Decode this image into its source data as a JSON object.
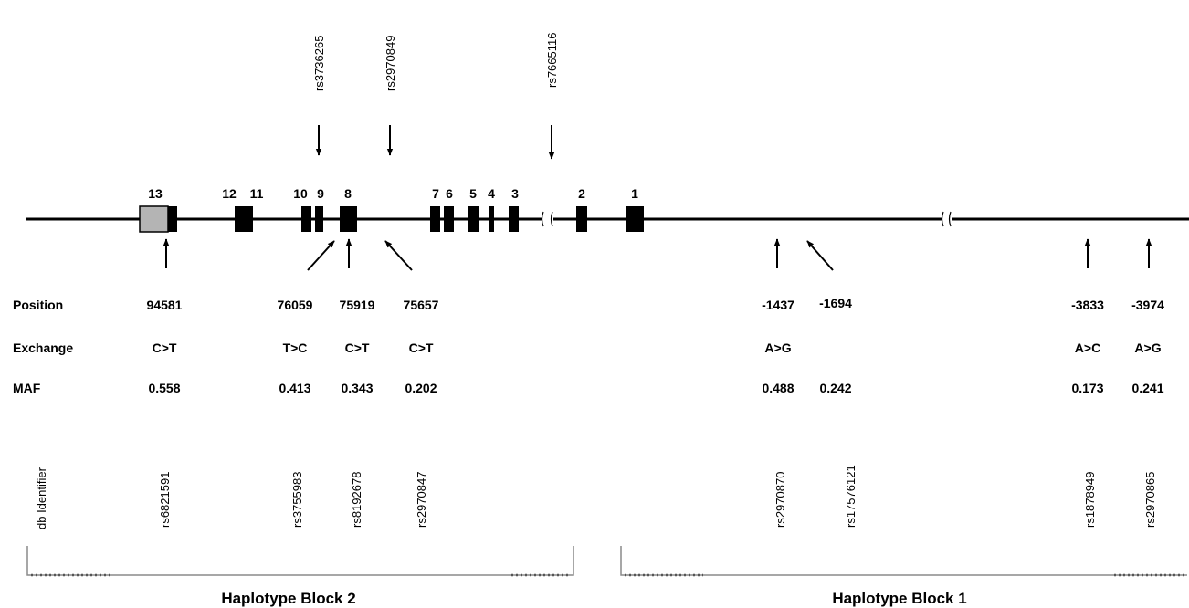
{
  "colors": {
    "ink": "#000000",
    "gray_exon": "#b4b4b4",
    "bracket": "#8a8a8a"
  },
  "top_snps": [
    "rs3736265",
    "rs2970849",
    "rs7665116"
  ],
  "exons": [
    "13",
    "12",
    "11",
    "10",
    "9",
    "8",
    "7",
    "6",
    "5",
    "4",
    "3",
    "2",
    "1"
  ],
  "row_labels": {
    "position": "Position",
    "exchange": "Exchange",
    "maf": "MAF",
    "db": "db Identifier"
  },
  "snps": [
    {
      "position": "94581",
      "exchange": "C>T",
      "maf": "0.558",
      "id": "rs6821591"
    },
    {
      "position": "76059",
      "exchange": "T>C",
      "maf": "0.413",
      "id": "rs3755983"
    },
    {
      "position": "75919",
      "exchange": "C>T",
      "maf": "0.343",
      "id": "rs8192678"
    },
    {
      "position": "75657",
      "exchange": "C>T",
      "maf": "0.202",
      "id": "rs2970847"
    },
    {
      "position": "-1437",
      "exchange": "A>G",
      "maf": "0.488",
      "id": "rs2970870"
    },
    {
      "position": "-1694",
      "exchange": "",
      "maf": "0.242",
      "id": "rs17576121"
    },
    {
      "position": "-3833",
      "exchange": "A>C",
      "maf": "0.173",
      "id": "rs1878949"
    },
    {
      "position": "-3974",
      "exchange": "A>G",
      "maf": "0.241",
      "id": "rs2970865"
    }
  ],
  "blocks": [
    "Haplotype Block 2",
    "Haplotype Block 1"
  ]
}
